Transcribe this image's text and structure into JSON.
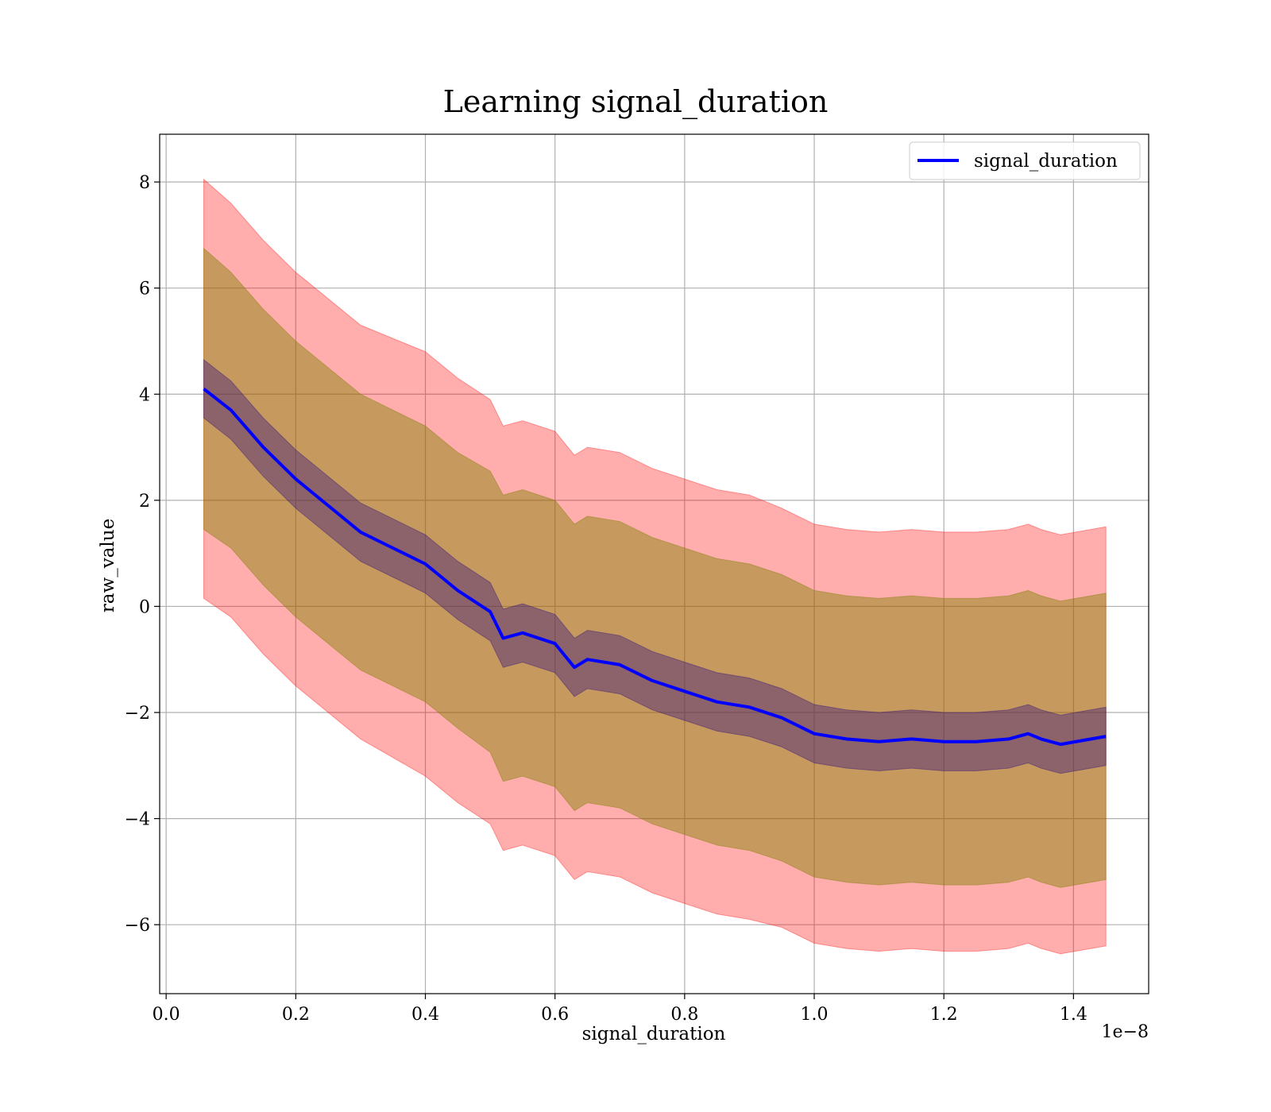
{
  "chart_data": {
    "type": "line",
    "title": "Learning signal_duration",
    "xlabel": "signal_duration",
    "ylabel": "raw_value",
    "x_scale_label": "1e−8",
    "xlim": [
      -0.01,
      1.516
    ],
    "ylim": [
      -7.3,
      8.9
    ],
    "x_ticks": [
      0.0,
      0.2,
      0.4,
      0.6,
      0.8,
      1.0,
      1.2,
      1.4
    ],
    "x_tick_labels": [
      "0.0",
      "0.2",
      "0.4",
      "0.6",
      "0.8",
      "1.0",
      "1.2",
      "1.4"
    ],
    "y_ticks": [
      -6,
      -4,
      -2,
      0,
      2,
      4,
      6,
      8
    ],
    "y_tick_labels": [
      "−6",
      "−4",
      "−2",
      "0",
      "2",
      "4",
      "6",
      "8"
    ],
    "grid": true,
    "legend_position": "upper-right",
    "colors": {
      "line": "#0000ff",
      "outer_band": "#ff0000",
      "middle_band": "#808000",
      "inner_band": "#1f0080",
      "grid": "#b0b0b0"
    },
    "x": [
      0.058,
      0.1,
      0.15,
      0.2,
      0.25,
      0.3,
      0.35,
      0.4,
      0.45,
      0.5,
      0.52,
      0.55,
      0.6,
      0.63,
      0.65,
      0.7,
      0.75,
      0.8,
      0.85,
      0.9,
      0.95,
      1.0,
      1.05,
      1.1,
      1.15,
      1.2,
      1.25,
      1.3,
      1.33,
      1.35,
      1.38,
      1.45
    ],
    "series": [
      {
        "name": "signal_duration",
        "values": [
          4.1,
          3.7,
          3.0,
          2.4,
          1.9,
          1.4,
          1.1,
          0.8,
          0.3,
          -0.1,
          -0.6,
          -0.5,
          -0.7,
          -1.15,
          -1.0,
          -1.1,
          -1.4,
          -1.6,
          -1.8,
          -1.9,
          -2.1,
          -2.4,
          -2.5,
          -2.55,
          -2.5,
          -2.55,
          -2.55,
          -2.5,
          -2.4,
          -2.5,
          -2.6,
          -2.45
        ],
        "band_inner_half_width": [
          0.55,
          0.55,
          0.55,
          0.55,
          0.55,
          0.55,
          0.55,
          0.55,
          0.55,
          0.55,
          0.55,
          0.55,
          0.55,
          0.55,
          0.55,
          0.55,
          0.55,
          0.55,
          0.55,
          0.55,
          0.55,
          0.55,
          0.55,
          0.55,
          0.55,
          0.55,
          0.55,
          0.55,
          0.55,
          0.55,
          0.55,
          0.55
        ],
        "band_middle_half_width": [
          2.65,
          2.6,
          2.6,
          2.6,
          2.6,
          2.6,
          2.6,
          2.6,
          2.6,
          2.65,
          2.7,
          2.7,
          2.7,
          2.7,
          2.7,
          2.7,
          2.7,
          2.7,
          2.7,
          2.7,
          2.7,
          2.7,
          2.7,
          2.7,
          2.7,
          2.7,
          2.7,
          2.7,
          2.7,
          2.7,
          2.7,
          2.7
        ],
        "band_outer_half_width": [
          3.95,
          3.9,
          3.9,
          3.9,
          3.9,
          3.9,
          3.95,
          4.0,
          4.0,
          4.0,
          4.0,
          4.0,
          4.0,
          4.0,
          4.0,
          4.0,
          4.0,
          4.0,
          4.0,
          4.0,
          3.95,
          3.95,
          3.95,
          3.95,
          3.95,
          3.95,
          3.95,
          3.95,
          3.95,
          3.95,
          3.95,
          3.95
        ]
      }
    ]
  }
}
